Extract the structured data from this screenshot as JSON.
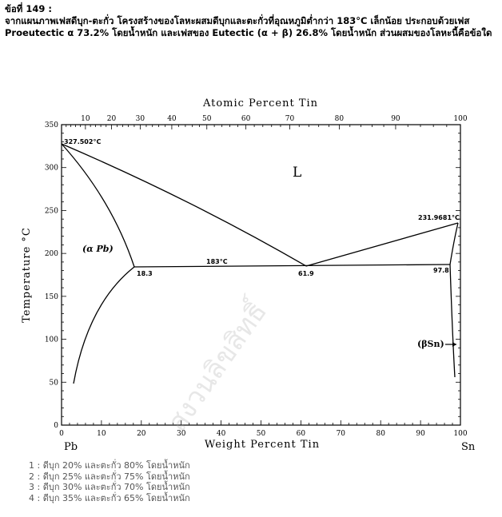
{
  "question": {
    "number": "ข้อที่ 149 :",
    "text": "จากแผนภาพเฟสดีบุก-ตะกั่ว โครงสร้างของโลหะผสมดีบุกและตะกั่วที่อุณหภูมิต่ำกว่า 183°C เล็กน้อย ประกอบด้วยเฟส Proeutectic α 73.2% โดยน้ำหนัก และเฟสของ Eutectic (α + β) 26.8% โดยน้ำหนัก ส่วนผสมของโลหะนี้คือข้อใด"
  },
  "diagram": {
    "top_axis_title": "Atomic Percent Tin",
    "top_ticks": [
      "10",
      "20",
      "30",
      "40",
      "50",
      "60",
      "70",
      "80",
      "90",
      "100"
    ],
    "bottom_axis_title": "Weight Percent Tin",
    "bottom_ticks": [
      "0",
      "10",
      "20",
      "30",
      "40",
      "50",
      "60",
      "70",
      "80",
      "90",
      "100"
    ],
    "y_axis_title": "Temperature °C",
    "y_ticks": [
      "0",
      "50",
      "100",
      "150",
      "200",
      "250",
      "300",
      "350"
    ],
    "left_element": "Pb",
    "right_element": "Sn",
    "labels": {
      "pb_melting": "327.502°C",
      "sn_melting": "231.9681°C",
      "liquid": "L",
      "alpha_phase": "(α Pb)",
      "beta_phase": "(βSn)",
      "eutectic_temp": "183°C",
      "alpha_max": "18.3",
      "eutectic_comp": "61.9",
      "beta_max": "97.8"
    },
    "colors": {
      "line": "#000000",
      "background": "#ffffff"
    }
  },
  "choices": [
    "1 : ดีบุก 20% และตะกั่ว 80% โดยน้ำหนัก",
    "2 : ดีบุก 25% และตะกั่ว 75% โดยน้ำหนัก",
    "3 : ดีบุก 30% และตะกั่ว 70% โดยน้ำหนัก",
    "4 : ดีบุก 35% และตะกั่ว 65% โดยน้ำหนัก"
  ]
}
